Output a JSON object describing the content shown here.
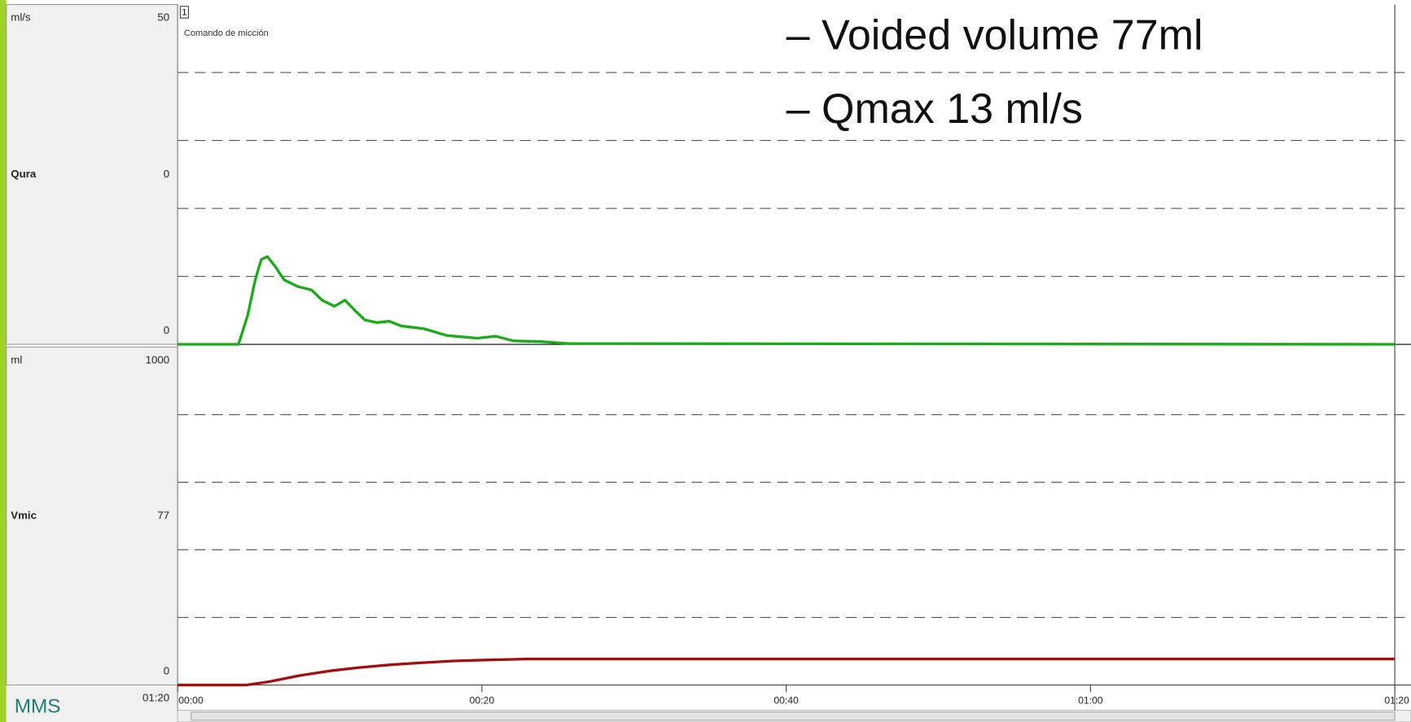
{
  "overlay": {
    "lines": [
      "– Voided volume 77ml",
      "– Qmax 13 ml/s"
    ]
  },
  "window": "01:20",
  "logo": "MMS",
  "event": {
    "number": "1",
    "label": "Comando de micción",
    "x": 0
  },
  "chart_data": [
    {
      "type": "line",
      "name": "Qura",
      "unit": "ml/s",
      "current_value": 0,
      "color": "#1aaa1a",
      "ylim": [
        0,
        50
      ],
      "yticks": [
        0,
        50
      ],
      "grid_lines": [
        10,
        20,
        30,
        40
      ],
      "xlim": [
        0,
        80
      ],
      "series": [
        {
          "name": "Qura",
          "color": "#1aaa1a",
          "x": [
            0,
            4.0,
            4.6,
            5.1,
            5.5,
            5.9,
            6.4,
            7.0,
            7.9,
            8.8,
            9.5,
            10.3,
            11.0,
            11.7,
            12.3,
            13.1,
            13.9,
            14.7,
            16.2,
            17.7,
            19.7,
            20.9,
            22.1,
            23.9,
            25.7,
            29.8,
            80
          ],
          "values": [
            0,
            0,
            4.2,
            9.5,
            12.5,
            12.9,
            11.5,
            9.5,
            8.5,
            8.0,
            6.5,
            5.6,
            6.5,
            4.9,
            3.6,
            3.2,
            3.4,
            2.7,
            2.3,
            1.3,
            0.9,
            1.2,
            0.5,
            0.4,
            0.1,
            0.1,
            0
          ]
        }
      ]
    },
    {
      "type": "line",
      "name": "Vmic",
      "unit": "ml",
      "current_value": 77,
      "color": "#a01010",
      "ylim": [
        0,
        1000
      ],
      "yticks": [
        0,
        1000
      ],
      "grid_lines": [
        200,
        400,
        600,
        800
      ],
      "xlim": [
        0,
        80
      ],
      "xticks": [
        {
          "value": 0,
          "label": "00:00"
        },
        {
          "value": 20,
          "label": "00:20"
        },
        {
          "value": 40,
          "label": "00:40"
        },
        {
          "value": 60,
          "label": "01:00"
        },
        {
          "value": 80,
          "label": "01:20"
        }
      ],
      "series": [
        {
          "name": "Vmic",
          "color": "#a01010",
          "x": [
            0,
            4.5,
            6,
            8,
            10,
            12,
            14,
            16,
            18,
            20,
            23,
            80
          ],
          "values": [
            0,
            0,
            10,
            28,
            42,
            52,
            60,
            66,
            71,
            74,
            77,
            77
          ]
        }
      ]
    }
  ]
}
